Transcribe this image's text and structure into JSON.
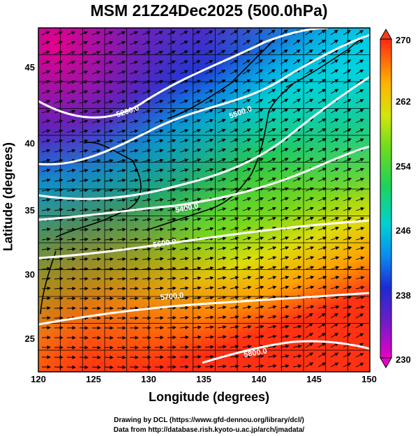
{
  "title": "MSM 21Z24Dec2025 (500.0hPa)",
  "axes": {
    "xlabel": "Longitude (degrees)",
    "ylabel": "Latitude  (degrees)",
    "xticks": [
      "120",
      "125",
      "130",
      "135",
      "140",
      "145",
      "150"
    ],
    "yticks": [
      "25",
      "30",
      "35",
      "40",
      "45"
    ]
  },
  "colorbar": {
    "ticks": [
      "230",
      "238",
      "246",
      "254",
      "262",
      "270"
    ]
  },
  "contour_labels": [
    "5200.0",
    "5400.0",
    "5500.0",
    "5600.0",
    "5700.0",
    "5800.0"
  ],
  "credits": {
    "line1": "Drawing by DCL (https://www.gfd-dennou.org/library/dcl/)",
    "line2": "Data from http://database.rish.kyoto-u.ac.jp/arch/jmadata/"
  },
  "colors": {
    "low": "#c8007a",
    "mid_blue": "#1e3cd2",
    "cyan": "#00c8e6",
    "green": "#3cc83c",
    "yellow": "#e6e60a",
    "high": "#ff3c14"
  }
}
